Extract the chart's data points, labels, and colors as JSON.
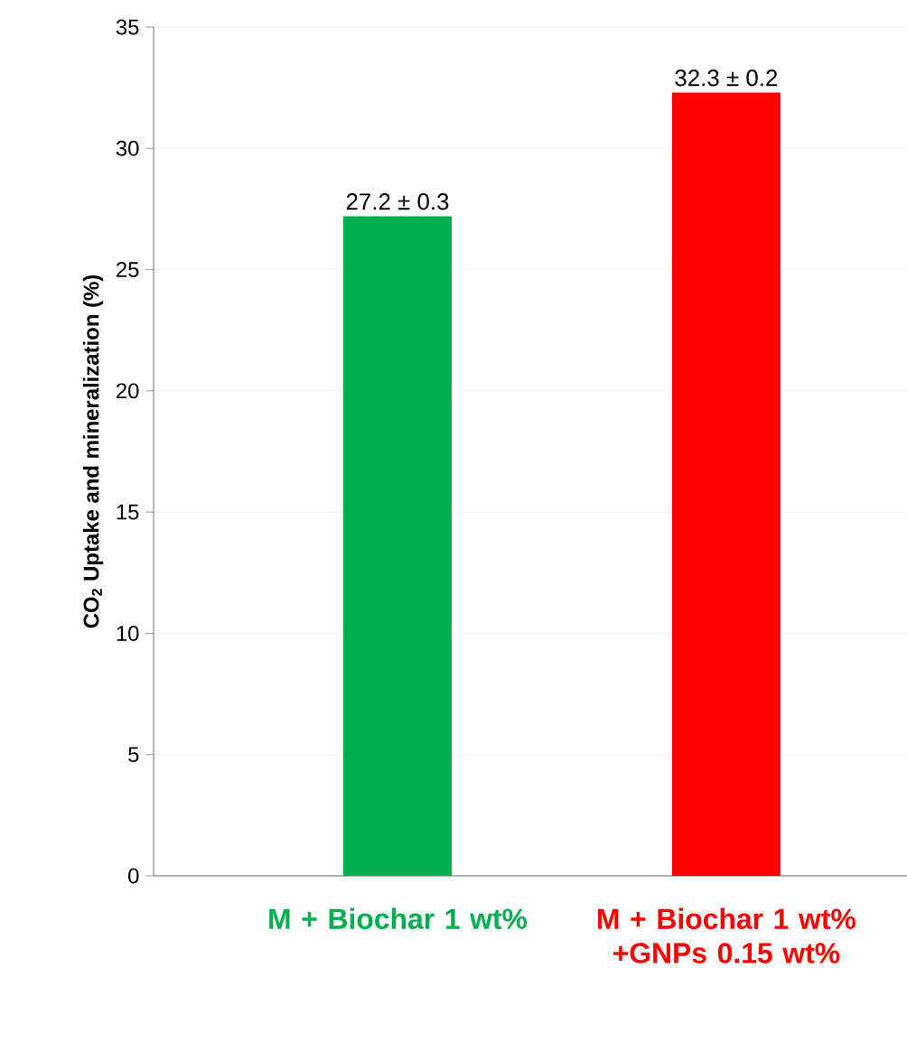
{
  "chart_data": {
    "type": "bar",
    "ylabel": "CO$_{2}$ Uptake and mineralization (%)",
    "categories": [
      "M + Biochar 1 wt%",
      "M + Biochar 1 wt% +GNPs 0.15 wt%"
    ],
    "values": [
      27.2,
      32.3
    ],
    "colors": [
      "#00b050",
      "#ff0000"
    ],
    "value_labels": [
      "27.2 ± 0.3",
      "32.3 ± 0.2"
    ],
    "ylim": [
      0,
      35
    ],
    "yticks": [
      0,
      5,
      10,
      15,
      20,
      25,
      30,
      35
    ],
    "grid": "y"
  }
}
